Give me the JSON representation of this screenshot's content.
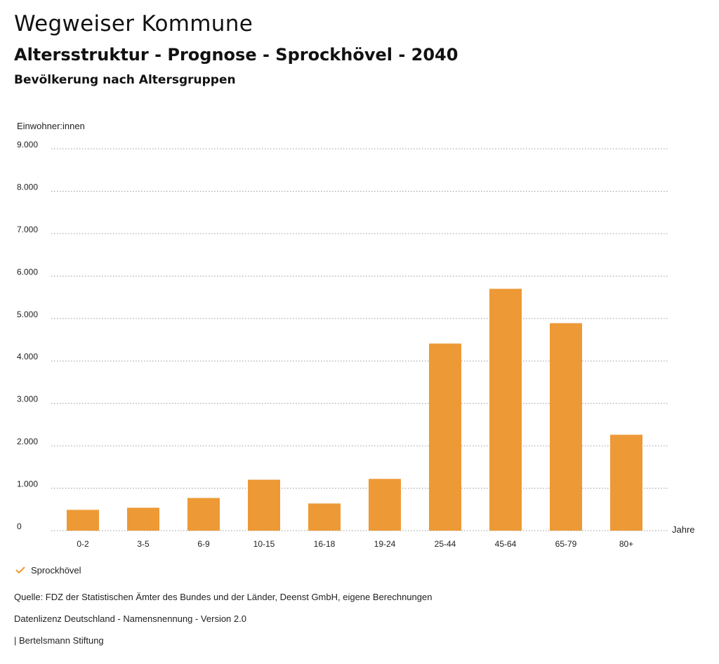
{
  "header": {
    "title": "Wegweiser Kommune",
    "subtitle": "Altersstruktur - Prognose - Sprockhövel - 2040",
    "section": "Bevölkerung nach Altersgruppen"
  },
  "legend": {
    "label": "Sprockhövel",
    "icon": "check-icon"
  },
  "footer": {
    "source": "Quelle: FDZ der Statistischen Ämter des Bundes und der Länder, Deenst GmbH, eigene Berechnungen",
    "license": "Datenlizenz Deutschland - Namensnennung - Version 2.0",
    "credit": "| Bertelsmann Stiftung"
  },
  "colors": {
    "bar": "#ED9935",
    "grid": "#9a9a9a",
    "text": "#222222"
  },
  "chart_data": {
    "type": "bar",
    "categories": [
      "0-2",
      "3-5",
      "6-9",
      "10-15",
      "16-18",
      "19-24",
      "25-44",
      "45-64",
      "65-79",
      "80+"
    ],
    "series": [
      {
        "name": "Sprockhövel",
        "values": [
          490,
          540,
          770,
          1200,
          640,
          1220,
          4410,
          5700,
          4890,
          2260
        ]
      }
    ],
    "xlabel": "Jahre",
    "ylabel": "Einwohner:innen",
    "ylim": [
      0,
      9000
    ],
    "yticks": [
      0,
      1000,
      2000,
      3000,
      4000,
      5000,
      6000,
      7000,
      8000,
      9000
    ],
    "ytick_labels": [
      "0",
      "1.000",
      "2.000",
      "3.000",
      "4.000",
      "5.000",
      "6.000",
      "7.000",
      "8.000",
      "9.000"
    ],
    "grid": true,
    "legend_position": "bottom-left"
  }
}
